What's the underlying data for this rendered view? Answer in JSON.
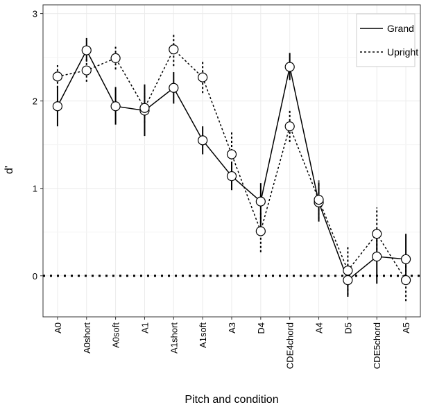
{
  "chart_data": {
    "type": "line",
    "title": "",
    "xlabel": "Pitch and condition",
    "ylabel": "d'",
    "categories": [
      "A0",
      "A0short",
      "A0soft",
      "A1",
      "A1short",
      "A1soft",
      "A3",
      "D4",
      "CDE4chord",
      "A4",
      "D5",
      "CDE5chord",
      "A5"
    ],
    "ylim": [
      -0.47,
      3.1
    ],
    "yticks": [
      0,
      1,
      2,
      3
    ],
    "reference_line": 0,
    "grid": true,
    "legend_position": "top-right",
    "series": [
      {
        "name": "Grand",
        "line_style": "solid",
        "values": [
          1.94,
          2.58,
          1.94,
          1.89,
          2.15,
          1.55,
          1.14,
          0.85,
          2.39,
          0.84,
          -0.05,
          0.22,
          0.19
        ],
        "error_low": [
          1.71,
          2.45,
          1.73,
          1.6,
          1.97,
          1.39,
          0.98,
          0.58,
          2.24,
          0.62,
          -0.24,
          -0.09,
          -0.06
        ],
        "error_high": [
          2.17,
          2.72,
          2.16,
          2.19,
          2.33,
          1.71,
          1.3,
          1.06,
          2.55,
          1.07,
          0.12,
          0.5,
          0.48
        ]
      },
      {
        "name": "Upright",
        "line_style": "dotted",
        "values": [
          2.28,
          2.35,
          2.49,
          1.92,
          2.59,
          2.27,
          1.39,
          0.51,
          1.71,
          0.87,
          0.06,
          0.48,
          -0.05
        ],
        "error_low": [
          2.15,
          2.22,
          2.36,
          1.75,
          2.4,
          2.09,
          1.14,
          0.27,
          1.53,
          0.65,
          -0.22,
          0.2,
          -0.29
        ],
        "error_high": [
          2.41,
          2.48,
          2.62,
          2.09,
          2.78,
          2.46,
          1.66,
          0.74,
          1.89,
          1.09,
          0.34,
          0.78,
          0.19
        ]
      }
    ]
  }
}
